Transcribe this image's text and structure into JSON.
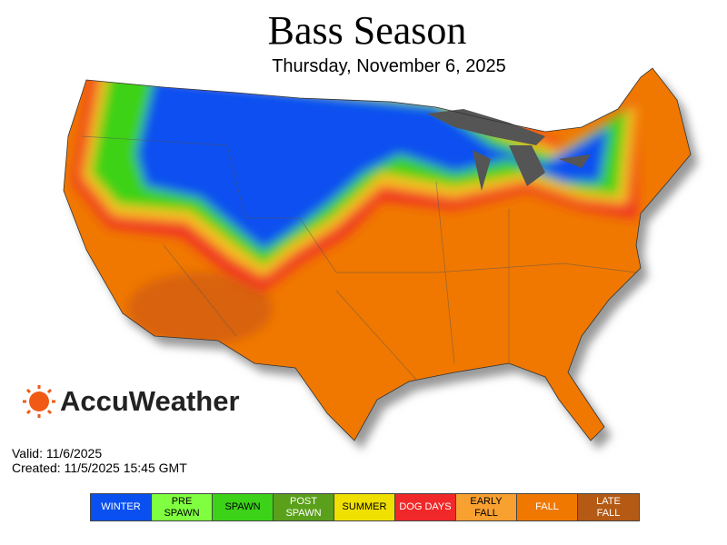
{
  "header": {
    "title": "Bass Season",
    "subtitle": "Thursday, November 6, 2025"
  },
  "brand": {
    "name": "AccuWeather"
  },
  "info": {
    "valid": "Valid: 11/6/2025",
    "created": "Created: 11/5/2025 15:45 GMT"
  },
  "legend": {
    "items": [
      {
        "lines": [
          "WINTER"
        ],
        "color": "#0a50f0",
        "text_color": "#ffffff"
      },
      {
        "lines": [
          "PRE",
          "SPAWN"
        ],
        "color": "#80ff40",
        "text_color": "#000000"
      },
      {
        "lines": [
          "SPAWN"
        ],
        "color": "#3cd218",
        "text_color": "#000000"
      },
      {
        "lines": [
          "POST",
          "SPAWN"
        ],
        "color": "#5aa01a",
        "text_color": "#ffffff"
      },
      {
        "lines": [
          "SUMMER"
        ],
        "color": "#f0e000",
        "text_color": "#000000"
      },
      {
        "lines": [
          "DOG DAYS"
        ],
        "color": "#f0282a",
        "text_color": "#ffffff"
      },
      {
        "lines": [
          "EARLY",
          "FALL"
        ],
        "color": "#f8a030",
        "text_color": "#000000"
      },
      {
        "lines": [
          "FALL"
        ],
        "color": "#f07800",
        "text_color": "#ffffff"
      },
      {
        "lines": [
          "LATE",
          "FALL"
        ],
        "color": "#b45a14",
        "text_color": "#ffffff"
      }
    ]
  }
}
